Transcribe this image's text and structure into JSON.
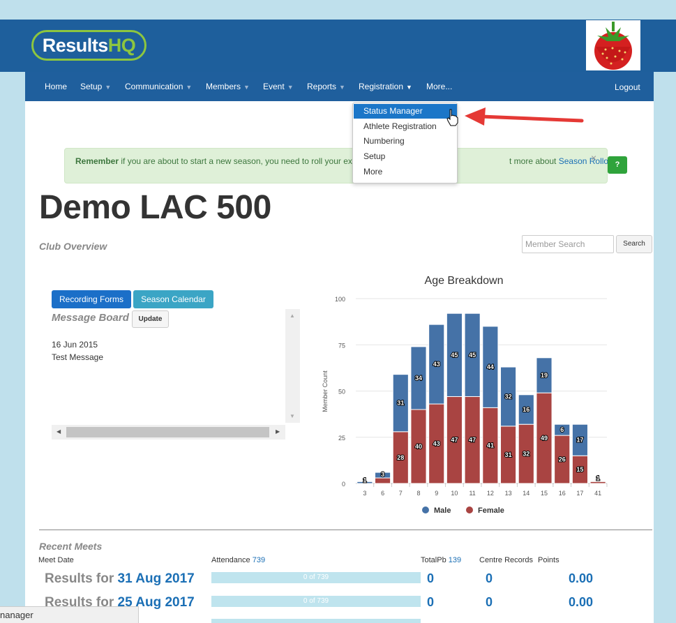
{
  "brand": {
    "logo_main": "Results",
    "logo_accent": "HQ"
  },
  "nav": {
    "items": [
      {
        "label": "Home",
        "caret": false
      },
      {
        "label": "Setup",
        "caret": true
      },
      {
        "label": "Communication",
        "caret": true
      },
      {
        "label": "Members",
        "caret": true
      },
      {
        "label": "Event",
        "caret": true
      },
      {
        "label": "Reports",
        "caret": true
      },
      {
        "label": "Registration",
        "caret": true
      },
      {
        "label": "More...",
        "caret": false
      }
    ],
    "logout": "Logout"
  },
  "registration_menu": {
    "items": [
      "Status Manager",
      "Athlete Registration",
      "Numbering",
      "Setup",
      "More"
    ],
    "selected": "Status Manager"
  },
  "alert": {
    "bold": "Remember",
    "text": " if you are about to start a new season, you need to roll your ex",
    "tail": "t more about ",
    "link": "Season Rollover",
    "close": "×",
    "help": "?"
  },
  "page": {
    "title": "Demo LAC 500",
    "subtitle": "Club Overview"
  },
  "search": {
    "placeholder": "Member Search",
    "button": "Search"
  },
  "buttons": {
    "recording_forms": "Recording Forms",
    "season_calendar": "Season Calendar",
    "update": "Update"
  },
  "message_board": {
    "title": "Message Board",
    "date": "16 Jun 2015",
    "message": "Test Message"
  },
  "chart_data": {
    "type": "bar",
    "stacked": true,
    "title": "Age Breakdown",
    "xlabel": "",
    "ylabel": "Member Count",
    "ylim": [
      0,
      100
    ],
    "yticks": [
      0,
      25,
      50,
      75,
      100
    ],
    "categories": [
      "3",
      "6",
      "7",
      "8",
      "9",
      "10",
      "11",
      "12",
      "13",
      "14",
      "15",
      "16",
      "17",
      "41"
    ],
    "series": [
      {
        "name": "Female",
        "color": "#a94442",
        "values": [
          0,
          3,
          28,
          40,
          43,
          47,
          47,
          41,
          31,
          32,
          49,
          26,
          15,
          1
        ]
      },
      {
        "name": "Male",
        "color": "#4572a7",
        "values": [
          1,
          3,
          31,
          34,
          43,
          45,
          45,
          44,
          32,
          16,
          19,
          6,
          17,
          0
        ]
      }
    ],
    "data_labels": {
      "Female": [
        "",
        "3",
        "28",
        "40",
        "43",
        "47",
        "47",
        "41",
        "31",
        "32",
        "49",
        "26",
        "15",
        "1"
      ],
      "Male": [
        "1",
        "",
        "31",
        "34",
        "43",
        "45",
        "45",
        "44",
        "32",
        "16",
        "19",
        "6",
        "17",
        ""
      ]
    },
    "legend": {
      "position": "bottom",
      "entries": [
        "Male",
        "Female"
      ]
    },
    "grid": true
  },
  "recent_meets": {
    "title": "Recent Meets",
    "headers": {
      "meet_date": "Meet Date",
      "attendance": "Attendance",
      "attendance_total": "739",
      "totalpb": "TotalPb",
      "totalpb_value": "139",
      "centre_records": "Centre Records",
      "points": "Points"
    },
    "rows": [
      {
        "prefix": "Results for ",
        "date": "31 Aug 2017",
        "attendance": "0 of 739",
        "totalpb": "0",
        "centre_records": "0",
        "points": "0.00"
      },
      {
        "prefix": "Results for ",
        "date": "25 Aug 2017",
        "attendance": "0 of 739",
        "totalpb": "0",
        "centre_records": "0",
        "points": "0.00"
      }
    ]
  },
  "status_bar": {
    "text": "nanager"
  }
}
